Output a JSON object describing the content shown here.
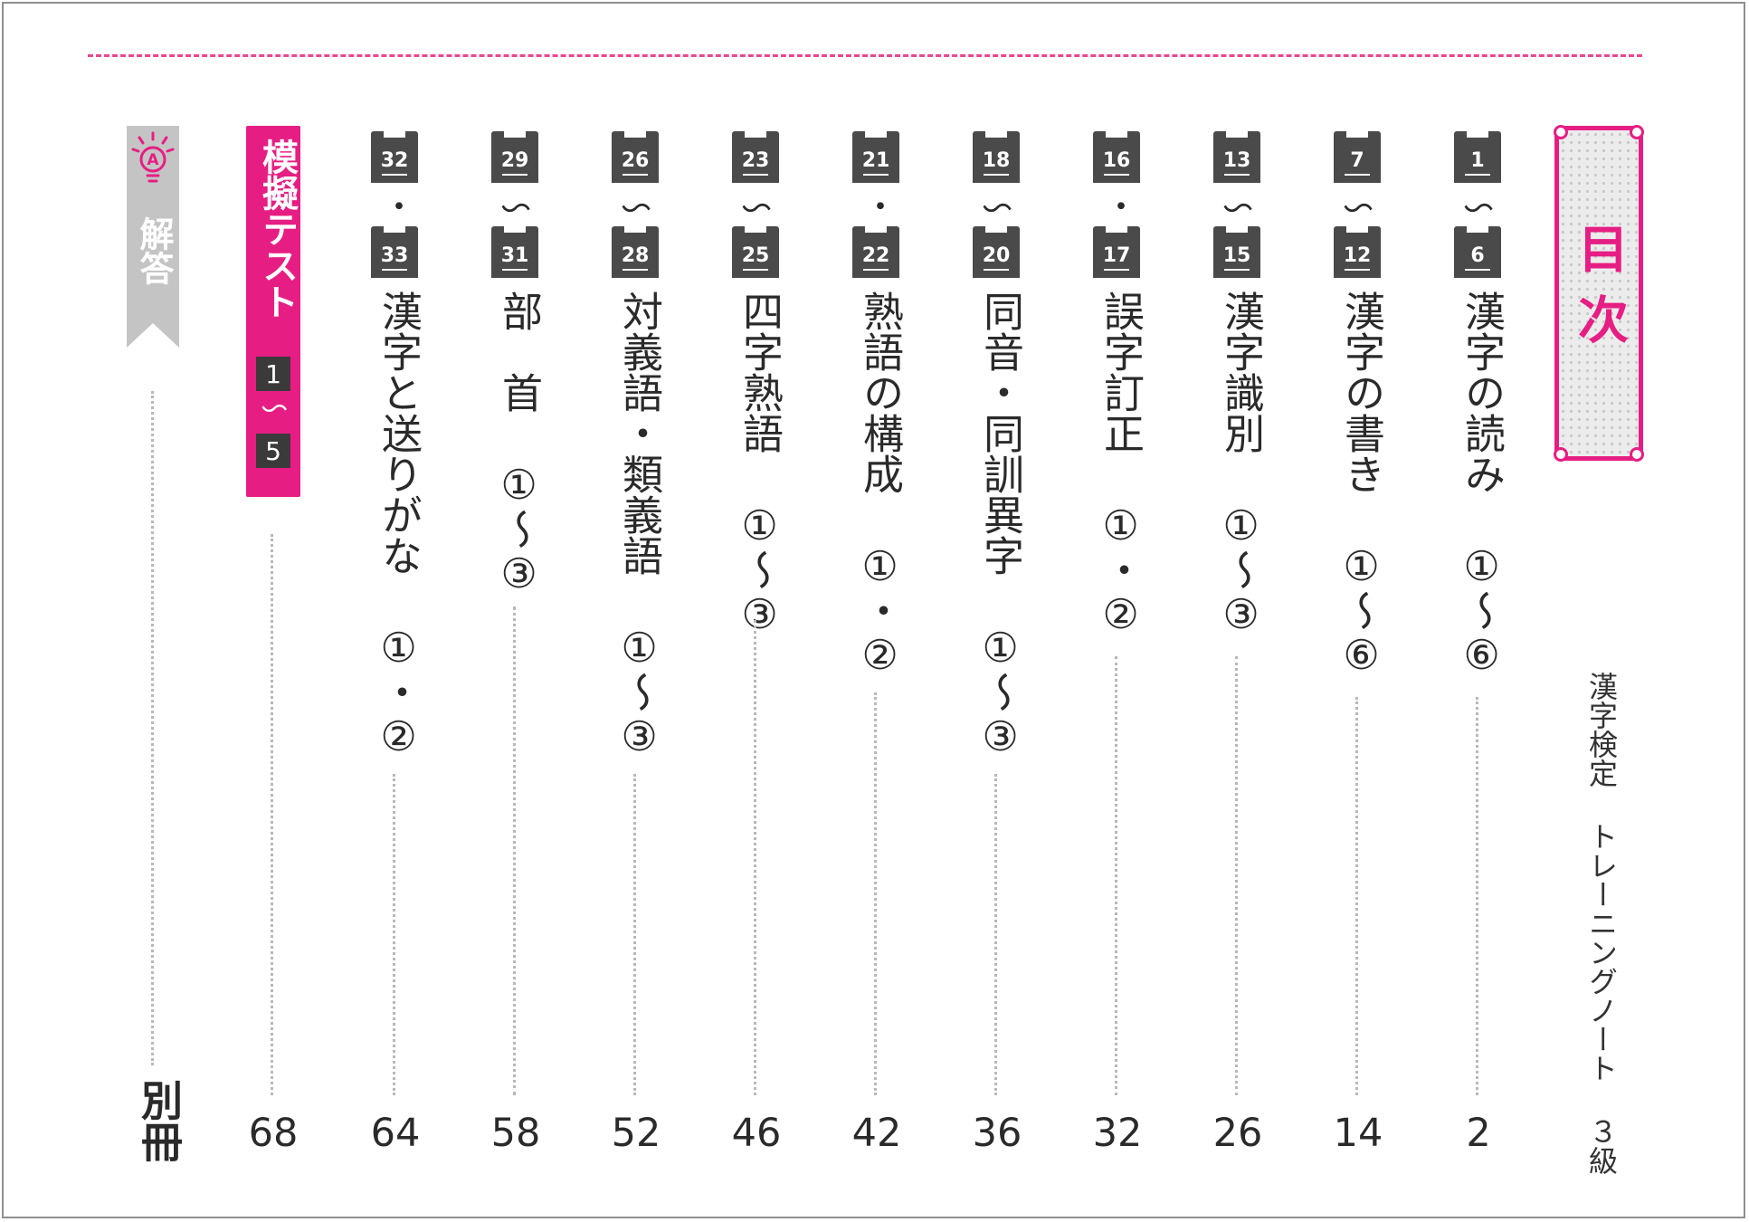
{
  "title": "目次",
  "book_title": "漢字検定 トレーニングノート ３級",
  "entries": [
    {
      "num_start": "1",
      "joiner": "～",
      "num_end": "6",
      "title": "漢字の読み ①～⑥",
      "page": "2"
    },
    {
      "num_start": "7",
      "joiner": "～",
      "num_end": "12",
      "title": "漢字の書き ①～⑥",
      "page": "14"
    },
    {
      "num_start": "13",
      "joiner": "～",
      "num_end": "15",
      "title": "漢字識別 ①～③",
      "page": "26"
    },
    {
      "num_start": "16",
      "joiner": "・",
      "num_end": "17",
      "title": "誤字訂正 ①・②",
      "page": "32"
    },
    {
      "num_start": "18",
      "joiner": "～",
      "num_end": "20",
      "title": "同音・同訓異字 ①～③",
      "page": "36"
    },
    {
      "num_start": "21",
      "joiner": "・",
      "num_end": "22",
      "title": "熟語の構成 ①・②",
      "page": "42"
    },
    {
      "num_start": "23",
      "joiner": "～",
      "num_end": "25",
      "title": "四字熟語 ①～③",
      "page": "46"
    },
    {
      "num_start": "26",
      "joiner": "～",
      "num_end": "28",
      "title": "対義語・類義語 ①～③",
      "page": "52"
    },
    {
      "num_start": "29",
      "joiner": "～",
      "num_end": "31",
      "title": "部　首 ①～③",
      "page": "58"
    },
    {
      "num_start": "32",
      "joiner": "・",
      "num_end": "33",
      "title": "漢字と送りがな ①・②",
      "page": "64"
    }
  ],
  "mock_test": {
    "title": "模擬テスト",
    "range_start": "1",
    "joiner": "～",
    "range_end": "5",
    "page": "68"
  },
  "answers": {
    "icon": "A-lightbulb-icon",
    "label": "解答",
    "page": "別冊"
  },
  "colors": {
    "accent": "#e61e83",
    "badge": "#4a4a4a",
    "answer_banner": "#c4c4c4"
  }
}
